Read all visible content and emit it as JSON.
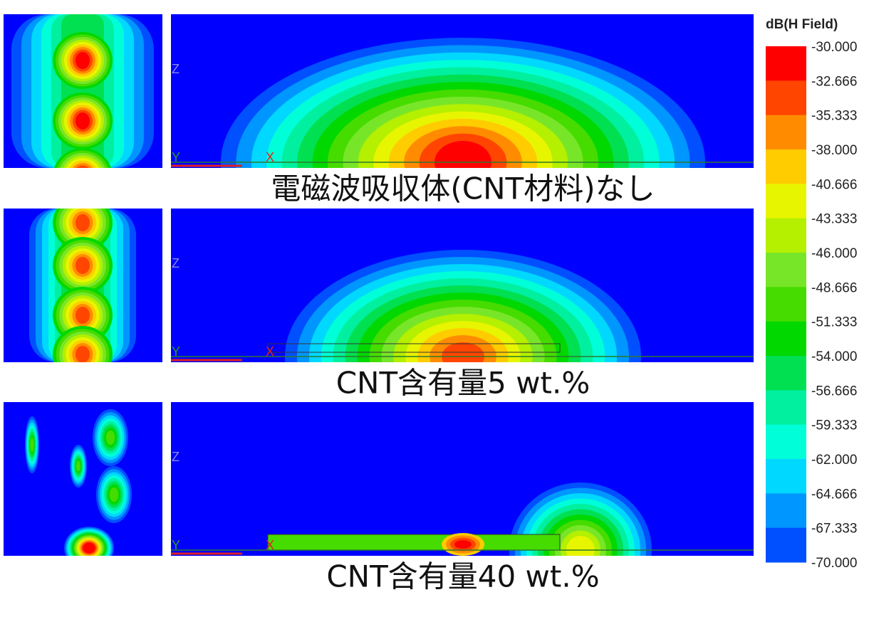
{
  "panels": [
    {
      "caption": "電磁波吸収体(CNT材料)なし"
    },
    {
      "caption": "CNT含有量5 wt.%"
    },
    {
      "caption": "CNT含有量40 wt.%"
    }
  ],
  "axis_labels": {
    "z": "Z",
    "x": "X",
    "y": "Y"
  },
  "colorbar": {
    "title": "dB(H Field)",
    "ticks": [
      "-30.000",
      "-32.666",
      "-35.333",
      "-38.000",
      "-40.666",
      "-43.333",
      "-46.000",
      "-48.666",
      "-51.333",
      "-54.000",
      "-56.666",
      "-59.333",
      "-62.000",
      "-64.666",
      "-67.333",
      "-70.000"
    ]
  }
}
